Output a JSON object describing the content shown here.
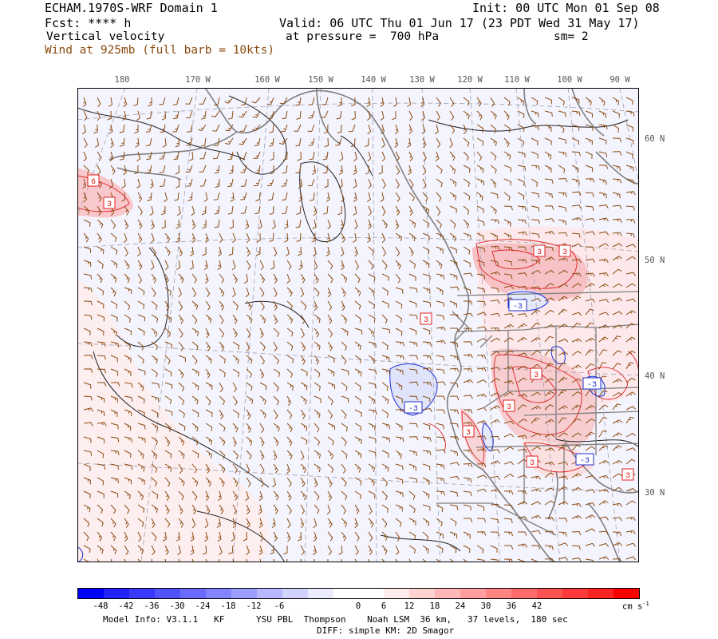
{
  "header": {
    "title": "ECHAM.1970S-WRF Domain 1",
    "init": "Init: 00 UTC Mon 01 Sep 08",
    "fcst": "Fcst: **** h",
    "valid": "Valid: 06 UTC Thu 01 Jun 17 (23 PDT Wed 31 May 17)",
    "field": "Vertical velocity",
    "pressure": "at pressure =  700 hPa",
    "smoothing": "sm= 2",
    "wind": "Wind at 925mb (full barb = 10kts)"
  },
  "map": {
    "lon_labels": [
      "180",
      "170 W",
      "160 W",
      "150 W",
      "140 W",
      "130 W",
      "120 W",
      "110 W",
      "100 W",
      "90 W"
    ],
    "lat_labels": [
      "60 N",
      "50 N",
      "40 N",
      "30 N"
    ],
    "contour_labels": [
      {
        "text": "6"
      },
      {
        "text": "3"
      },
      {
        "text": "3"
      },
      {
        "text": "3"
      },
      {
        "text": "3"
      },
      {
        "text": "3"
      },
      {
        "text": "3"
      },
      {
        "text": "3"
      },
      {
        "text": "3"
      },
      {
        "text": "3"
      },
      {
        "text": "-3"
      },
      {
        "text": "-3"
      },
      {
        "text": "-3"
      },
      {
        "text": "-3"
      }
    ],
    "colors": {
      "land": "#7f7f7f",
      "contour_pos": "#e02020",
      "contour_neg": "#2030d0",
      "wind_barb": "#8a4b0f",
      "grid": "#a0a0b0"
    }
  },
  "colorbar": {
    "labels": [
      "-48",
      "-42",
      "-36",
      "-30",
      "-24",
      "-18",
      "-12",
      "-6",
      "0",
      "6",
      "12",
      "18",
      "24",
      "30",
      "36",
      "42"
    ],
    "unit": "cm s",
    "unit_exp": "-1",
    "colors": [
      "#0000ff",
      "#2222ff",
      "#3a3aff",
      "#5252ff",
      "#6a6aff",
      "#8484ff",
      "#9e9eff",
      "#b8b8ff",
      "#d2d2ff",
      "#ececff",
      "#ffffff",
      "#ffffff",
      "#ffecec",
      "#ffd2d2",
      "#ffb8b8",
      "#ff9e9e",
      "#ff8484",
      "#ff6a6a",
      "#ff5252",
      "#ff3a3a",
      "#ff2222",
      "#ff0000"
    ]
  },
  "footer": {
    "line1": "Model Info: V3.1.1   KF      YSU PBL  Thompson    Noah LSM  36 km,   37 levels,  180 sec",
    "line2": "DIFF: simple KM: 2D Smagor"
  }
}
